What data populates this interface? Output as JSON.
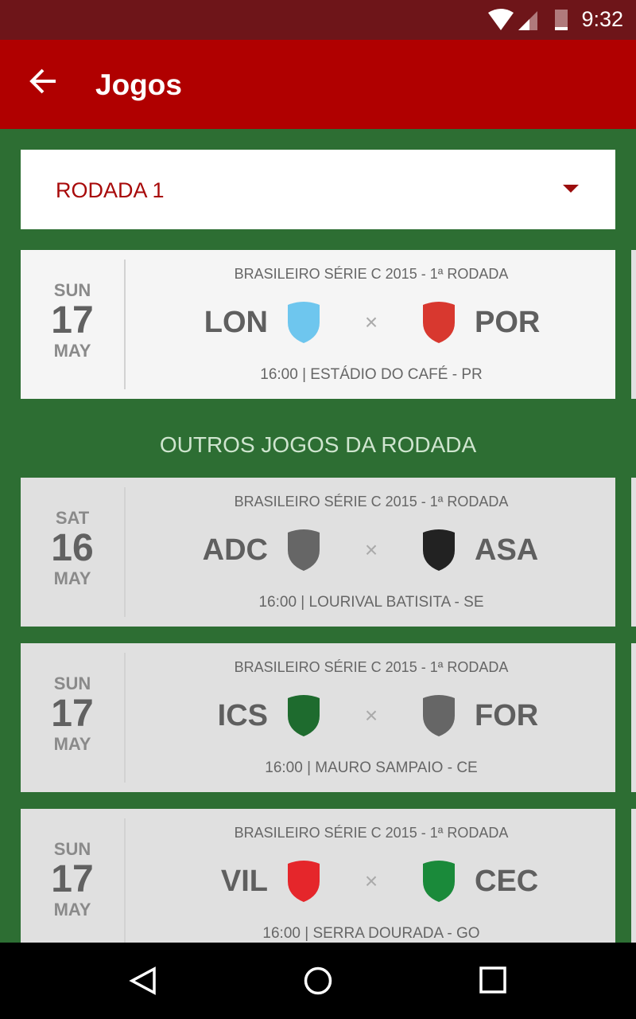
{
  "status": {
    "time": "9:32"
  },
  "appbar": {
    "title": "Jogos",
    "back_icon": "arrow-back-icon"
  },
  "round_select": {
    "value": "RODADA 1"
  },
  "featured": {
    "dow": "SUN",
    "day": "17",
    "month": "MAY",
    "competition": "BRASILEIRO SÉRIE C 2015 - 1ª RODADA",
    "home": "LON",
    "away": "POR",
    "vs": "×",
    "venue": "16:00 | ESTÁDIO DO CAFÉ - PR",
    "home_color": "#6ec6ee",
    "away_color": "#d8382f"
  },
  "section_title": "OUTROS JOGOS DA RODADA",
  "games": [
    {
      "dow": "SAT",
      "day": "16",
      "month": "MAY",
      "competition": "BRASILEIRO SÉRIE C 2015 - 1ª RODADA",
      "home": "ADC",
      "away": "ASA",
      "vs": "×",
      "venue": "16:00 | LOURIVAL BATISITA - SE",
      "home_color": "#666666",
      "away_color": "#222222"
    },
    {
      "dow": "SUN",
      "day": "17",
      "month": "MAY",
      "competition": "BRASILEIRO SÉRIE C 2015 - 1ª RODADA",
      "home": "ICS",
      "away": "FOR",
      "vs": "×",
      "venue": "16:00 | MAURO SAMPAIO - CE",
      "home_color": "#1e6b2e",
      "away_color": "#666666"
    },
    {
      "dow": "SUN",
      "day": "17",
      "month": "MAY",
      "competition": "BRASILEIRO SÉRIE C 2015 - 1ª RODADA",
      "home": "VIL",
      "away": "CEC",
      "vs": "×",
      "venue": "16:00 | SERRA DOURADA - GO",
      "home_color": "#e5262b",
      "away_color": "#1a8a3a"
    }
  ]
}
